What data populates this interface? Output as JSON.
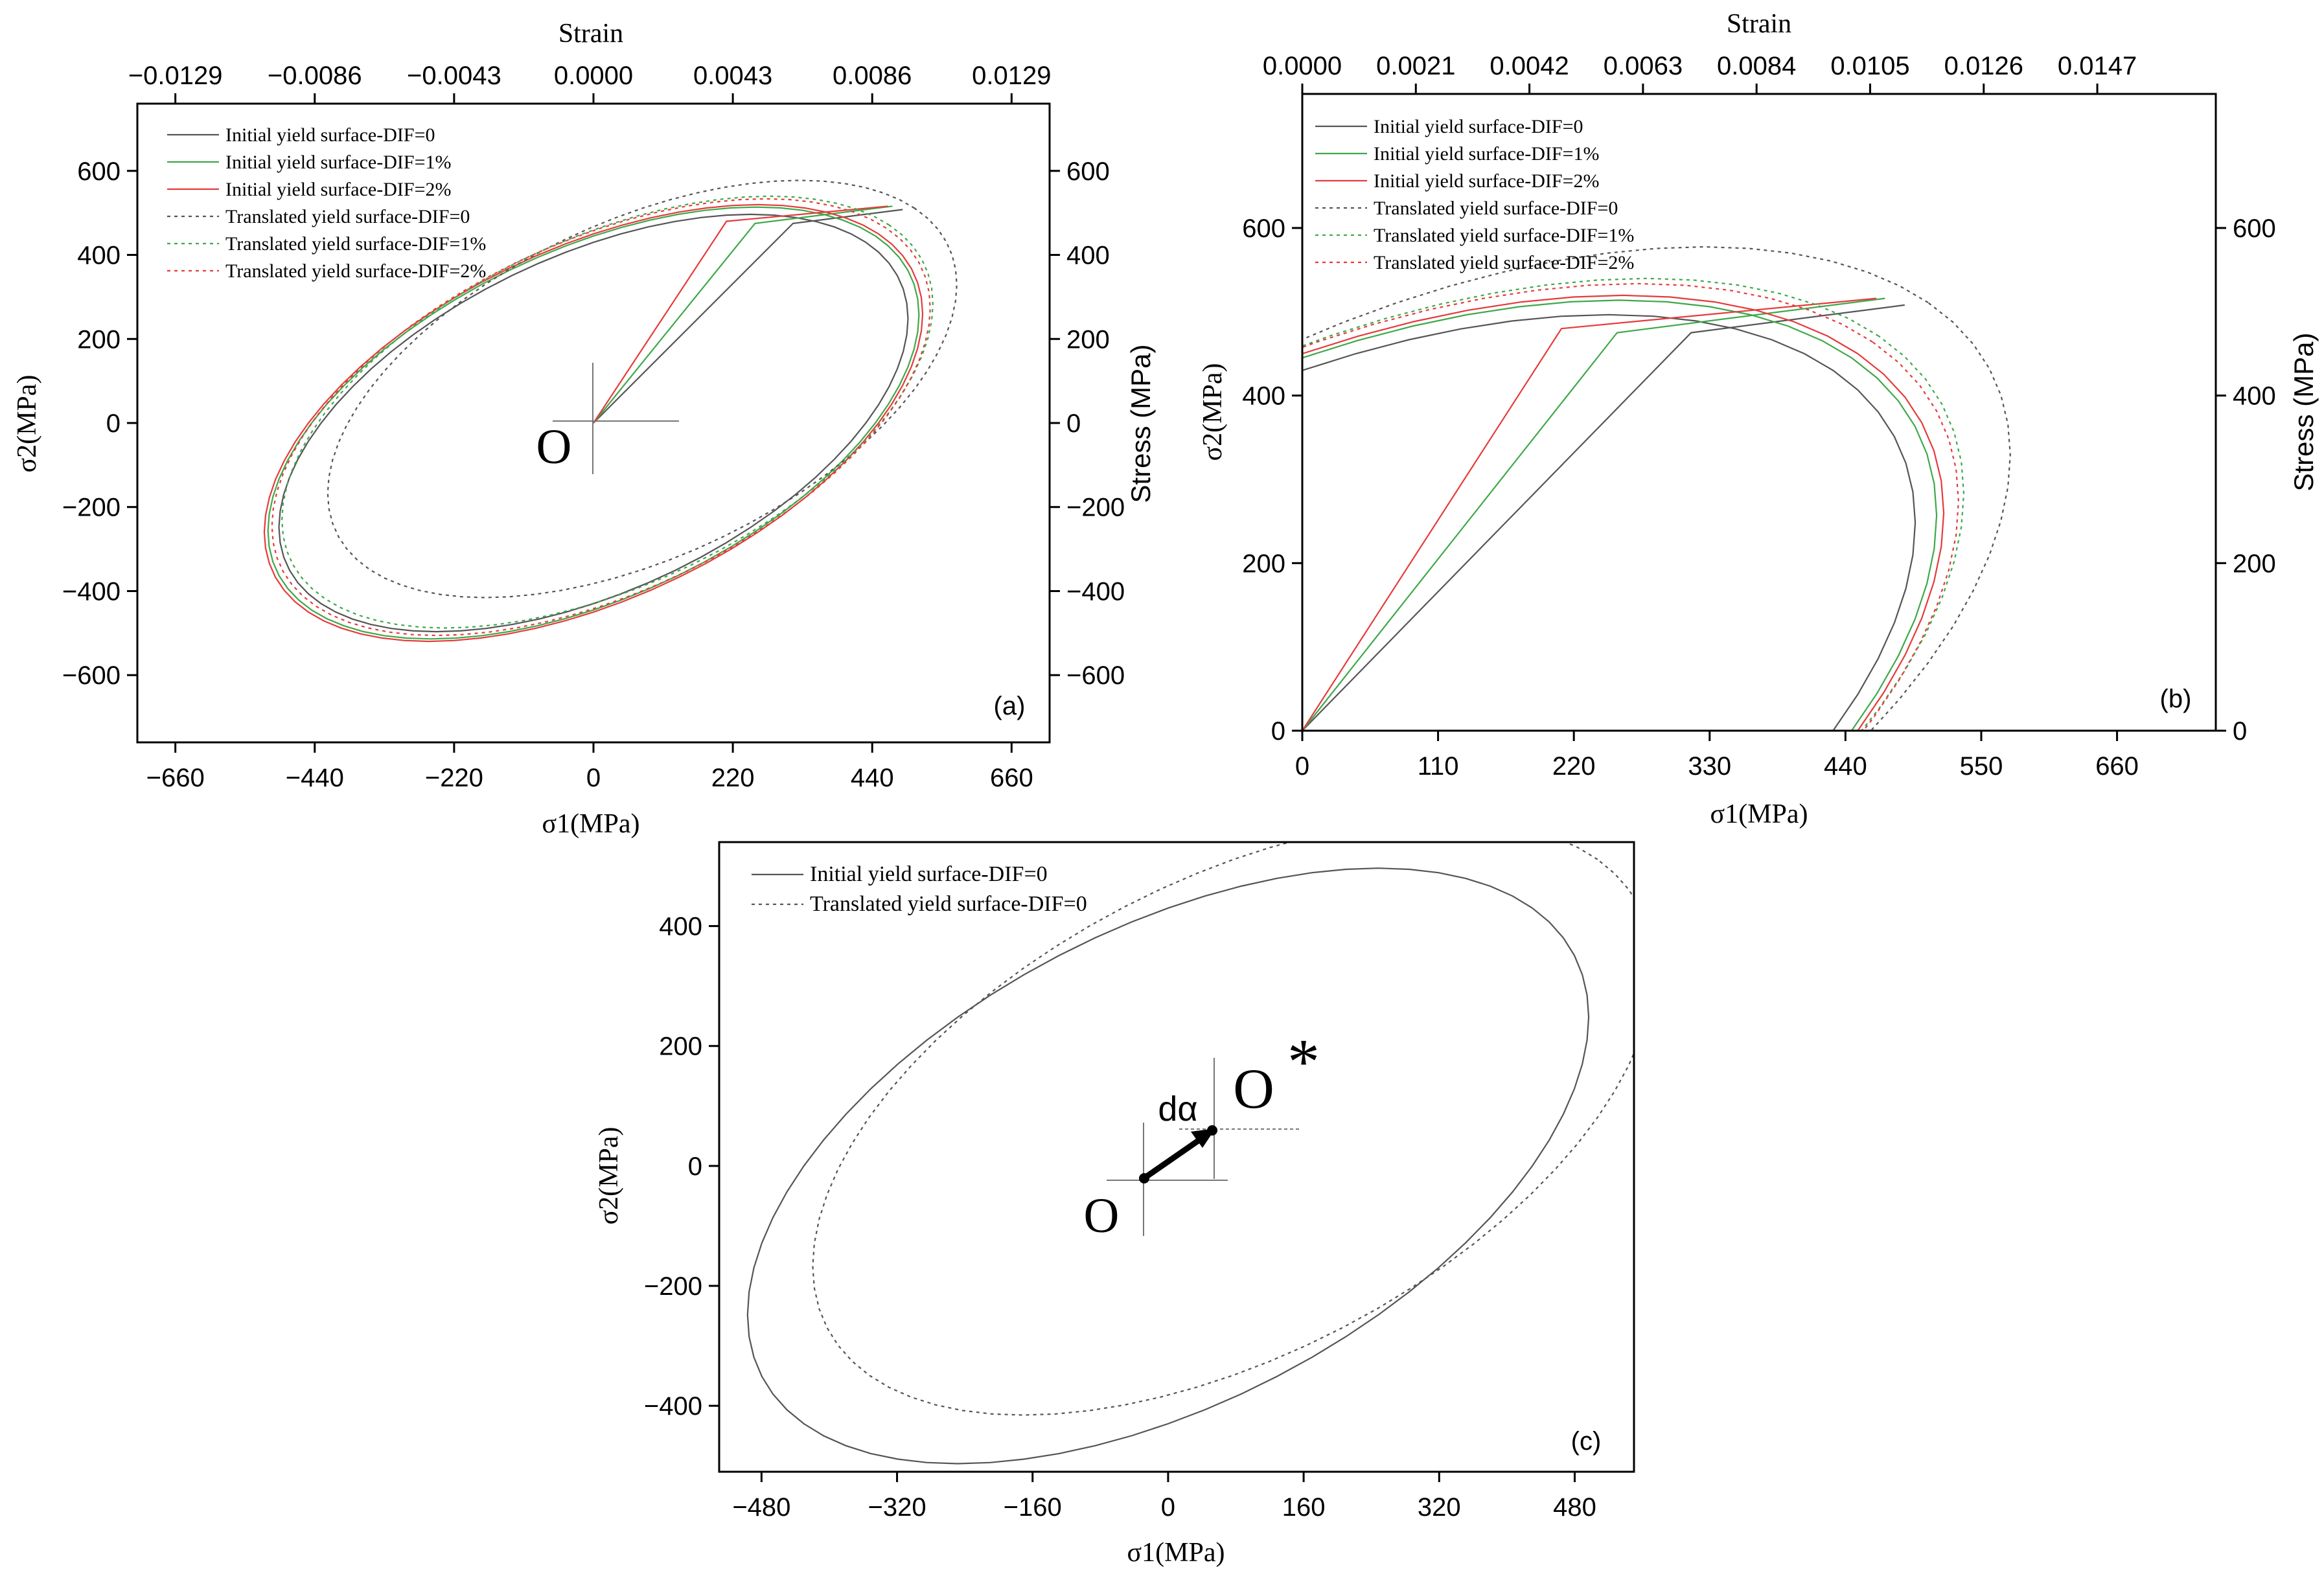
{
  "figure": {
    "panels": [
      "(a)",
      "(b)",
      "(c)"
    ],
    "origin_label": "O",
    "translated_origin_label": "O",
    "translated_origin_star": "*",
    "translation_label": "dα"
  },
  "chart_data": [
    {
      "id": "a",
      "type": "line",
      "panel_label": "(a)",
      "xlabel": "σ1(MPa)",
      "ylabel": "σ2(MPa)",
      "top_label": "Strain",
      "right_label": "Stress (MPa)",
      "xlim": [
        -720,
        720
      ],
      "ylim": [
        -760,
        760
      ],
      "xticks": [
        -660,
        -440,
        -220,
        0,
        220,
        440,
        660
      ],
      "yticks": [
        -600,
        -400,
        -200,
        0,
        200,
        400,
        600
      ],
      "top_ticks": [
        "-0.0129",
        "-0.0086",
        "-0.0043",
        "0.0000",
        "0.0043",
        "0.0086",
        "0.0129"
      ],
      "top_tick_positions": [
        -660,
        -440,
        -220,
        0,
        220,
        440,
        660
      ],
      "right_ticks": [
        -600,
        -400,
        -200,
        0,
        200,
        400,
        600
      ],
      "legend_position": "top-left",
      "series": [
        {
          "name": "Initial yield surface-DIF=0",
          "color": "#555555",
          "dash": "solid",
          "center": [
            0,
            0
          ],
          "radius": 430,
          "strain_path": [
            [
              0,
              0
            ],
            [
              315,
              475
            ],
            [
              488,
              508
            ]
          ]
        },
        {
          "name": "Initial yield surface-DIF=1%",
          "color": "#3ea84a",
          "dash": "solid",
          "center": [
            0,
            0
          ],
          "radius": 445,
          "strain_path": [
            [
              0,
              0
            ],
            [
              255,
              475
            ],
            [
              472,
              516
            ]
          ]
        },
        {
          "name": "Initial yield surface-DIF=2%",
          "color": "#e53b3b",
          "dash": "solid",
          "center": [
            0,
            0
          ],
          "radius": 450,
          "strain_path": [
            [
              0,
              0
            ],
            [
              210,
              480
            ],
            [
              465,
              516
            ]
          ]
        },
        {
          "name": "Translated yield surface-DIF=0",
          "color": "#555555",
          "dash": "dotted",
          "center": [
            77,
            81
          ],
          "radius": 430
        },
        {
          "name": "Translated yield surface-DIF=1%",
          "color": "#3ea84a",
          "dash": "dotted",
          "center": [
            22,
            26
          ],
          "radius": 445
        },
        {
          "name": "Translated yield surface-DIF=2%",
          "color": "#e53b3b",
          "dash": "dotted",
          "center": [
            12,
            14
          ],
          "radius": 450
        }
      ]
    },
    {
      "id": "b",
      "type": "line",
      "panel_label": "(b)",
      "xlabel": "σ1(MPa)",
      "ylabel": "σ2(MPa)",
      "top_label": "Strain",
      "right_label": "Stress (MPa)",
      "xlim": [
        0,
        740
      ],
      "ylim": [
        0,
        760
      ],
      "xticks": [
        0,
        110,
        220,
        330,
        440,
        550,
        660
      ],
      "yticks": [
        0,
        200,
        400,
        600
      ],
      "top_ticks": [
        "0.0000",
        "0.0021",
        "0.0042",
        "0.0063",
        "0.0084",
        "0.0105",
        "0.0126",
        "0.0147"
      ],
      "top_tick_positions": [
        0,
        92,
        184,
        276,
        368,
        460,
        552,
        644
      ],
      "right_ticks": [
        0,
        200,
        400,
        600
      ],
      "legend_position": "top-left",
      "series": [
        {
          "name": "Initial yield surface-DIF=0",
          "color": "#555555",
          "dash": "solid",
          "center": [
            0,
            0
          ],
          "radius": 430,
          "strain_path": [
            [
              0,
              0
            ],
            [
              315,
              475
            ],
            [
              488,
              508
            ]
          ]
        },
        {
          "name": "Initial yield surface-DIF=1%",
          "color": "#3ea84a",
          "dash": "solid",
          "center": [
            0,
            0
          ],
          "radius": 445,
          "strain_path": [
            [
              0,
              0
            ],
            [
              255,
              475
            ],
            [
              472,
              516
            ]
          ]
        },
        {
          "name": "Initial yield surface-DIF=2%",
          "color": "#e53b3b",
          "dash": "solid",
          "center": [
            0,
            0
          ],
          "radius": 450,
          "strain_path": [
            [
              0,
              0
            ],
            [
              210,
              480
            ],
            [
              465,
              516
            ]
          ]
        },
        {
          "name": "Translated yield surface-DIF=0",
          "color": "#555555",
          "dash": "dotted",
          "center": [
            77,
            81
          ],
          "radius": 430
        },
        {
          "name": "Translated yield surface-DIF=1%",
          "color": "#3ea84a",
          "dash": "dotted",
          "center": [
            22,
            26
          ],
          "radius": 445
        },
        {
          "name": "Translated yield surface-DIF=2%",
          "color": "#e53b3b",
          "dash": "dotted",
          "center": [
            12,
            14
          ],
          "radius": 450
        }
      ]
    },
    {
      "id": "c",
      "type": "line",
      "panel_label": "(c)",
      "xlabel": "σ1(MPa)",
      "ylabel": "σ2(MPa)",
      "xlim": [
        -530,
        550
      ],
      "ylim": [
        -510,
        540
      ],
      "xticks": [
        -480,
        -320,
        -160,
        0,
        160,
        320,
        480
      ],
      "yticks": [
        -400,
        -200,
        0,
        200,
        400
      ],
      "legend_position": "top-left",
      "translation_vector": [
        [
          0,
          0
        ],
        [
          77,
          81
        ]
      ],
      "series": [
        {
          "name": "Initial yield surface-DIF=0",
          "color": "#555555",
          "dash": "solid",
          "center": [
            0,
            0
          ],
          "radius": 430
        },
        {
          "name": "Translated yield surface-DIF=0",
          "color": "#555555",
          "dash": "dotted",
          "center": [
            77,
            81
          ],
          "radius": 430
        }
      ]
    }
  ]
}
